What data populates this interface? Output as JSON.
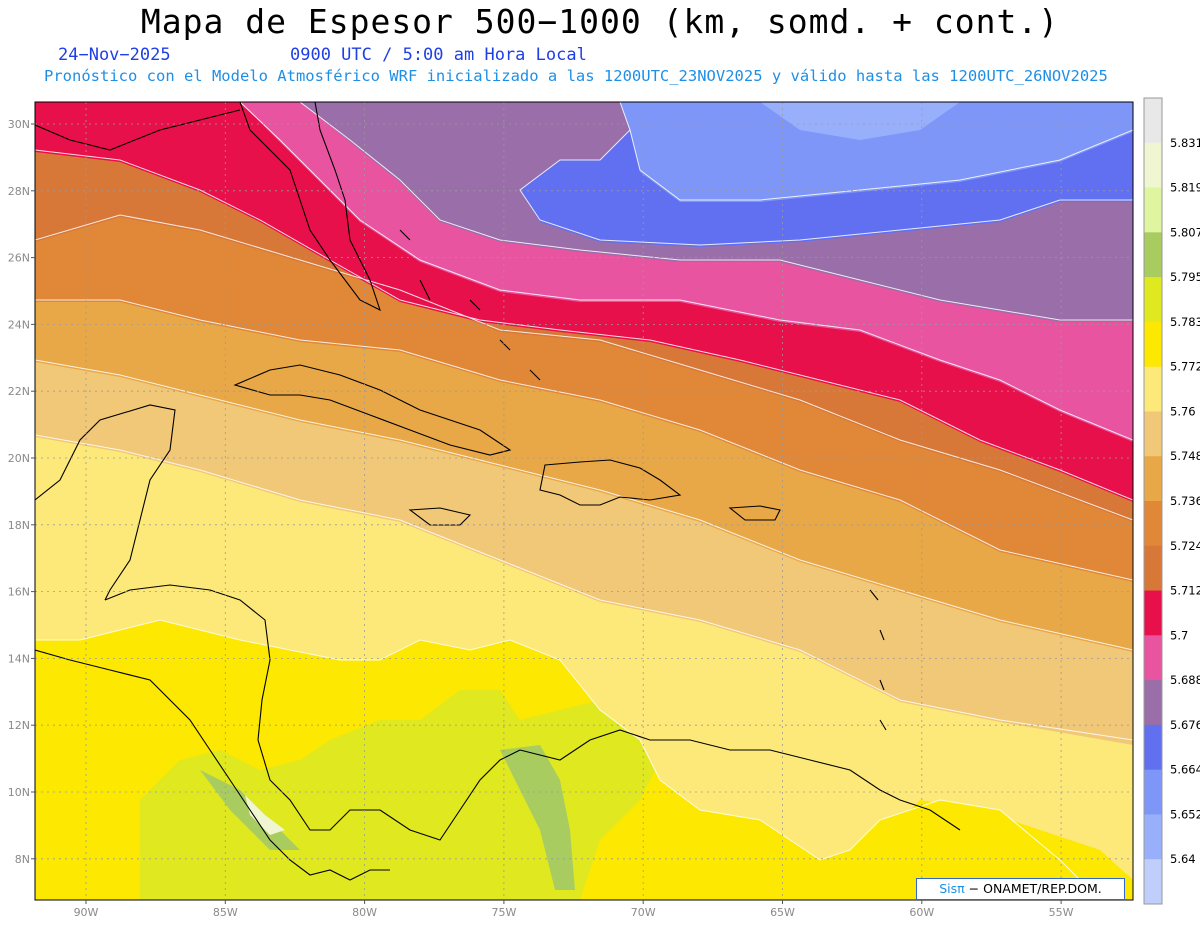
{
  "title": "Mapa de Espesor 500−1000 (km, somd. + cont.)",
  "date": "24−Nov−2025",
  "time": "0900 UTC / 5:00 am Hora Local",
  "subtitle": "Pronóstico con el Modelo Atmosférico WRF inicializado a las 1200UTC_23NOV2025 y válido hasta las  1200UTC_26NOV2025",
  "credit": {
    "brand": "Sisπ",
    "text": "− ONAMET/REP.DOM."
  },
  "lat_labels": [
    "30N",
    "28N",
    "26N",
    "24N",
    "22N",
    "20N",
    "18N",
    "16N",
    "14N",
    "12N",
    "10N",
    "8N"
  ],
  "lon_labels": [
    "90W",
    "85W",
    "80W",
    "75W",
    "70W",
    "65W",
    "60W",
    "55W"
  ],
  "colorbar": {
    "levels": [
      "5.831",
      "5.819",
      "5.807",
      "5.795",
      "5.783",
      "5.772",
      "5.76",
      "5.748",
      "5.736",
      "5.724",
      "5.712",
      "5.7",
      "5.688",
      "5.676",
      "5.664",
      "5.652",
      "5.64"
    ],
    "colors": [
      "#e8e8e8",
      "#f0f5d2",
      "#e0f5a0",
      "#a8cc60",
      "#e0e820",
      "#fce800",
      "#fde97a",
      "#f0c878",
      "#e8a848",
      "#e08838",
      "#d87838",
      "#e8104a",
      "#e854a0",
      "#9a6ea8",
      "#6070f0",
      "#7e96f8",
      "#98b0fc",
      "#c0cefc"
    ]
  }
}
